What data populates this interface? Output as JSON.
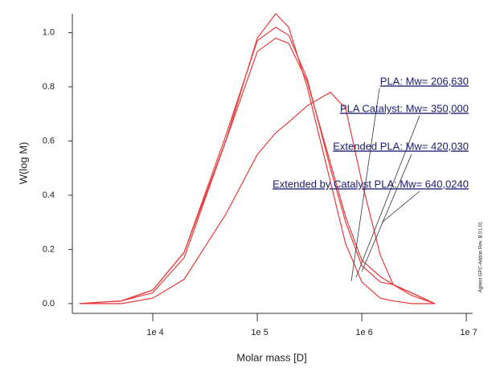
{
  "chart_data": {
    "type": "line",
    "ylabel": "W(log M)",
    "xlabel": "Molar mass [D]",
    "xscale": "log",
    "x": [
      2000,
      5000,
      10000,
      20000,
      50000,
      100000,
      150000,
      200000,
      300000,
      500000,
      700000,
      1000000,
      1500000,
      2000000,
      3000000,
      5000000
    ],
    "series": [
      {
        "color": "#e83a3a",
        "values": [
          0,
          0.01,
          0.04,
          0.17,
          0.6,
          0.98,
          1.07,
          1.02,
          0.8,
          0.45,
          0.22,
          0.08,
          0.02,
          0.01,
          0,
          0
        ]
      },
      {
        "color": "#e83a3a",
        "values": [
          0,
          0.01,
          0.05,
          0.19,
          0.62,
          0.97,
          1.02,
          0.99,
          0.83,
          0.5,
          0.3,
          0.14,
          0.08,
          0.07,
          0.04,
          0
        ]
      },
      {
        "color": "#e83a3a",
        "values": [
          0,
          0.01,
          0.05,
          0.19,
          0.6,
          0.93,
          0.98,
          0.96,
          0.82,
          0.52,
          0.32,
          0.16,
          0.1,
          0.07,
          0.04,
          0
        ]
      },
      {
        "color": "#e83a3a",
        "values": [
          0,
          0,
          0.02,
          0.09,
          0.33,
          0.55,
          0.63,
          0.67,
          0.73,
          0.78,
          0.72,
          0.45,
          0.18,
          0.07,
          0.03,
          0
        ]
      }
    ],
    "xlim": [
      1700,
      11500000
    ],
    "ylim": [
      -0.036,
      1.07
    ],
    "xticks": [
      {
        "value": 10000,
        "label": "1e 4"
      },
      {
        "value": 100000,
        "label": "1e 5"
      },
      {
        "value": 1000000,
        "label": "1e 6"
      },
      {
        "value": 10000000,
        "label": "1e 7"
      }
    ],
    "yticks": [
      {
        "value": 0,
        "label": "0.0"
      },
      {
        "value": 0.2,
        "label": "0.2"
      },
      {
        "value": 0.4,
        "label": "0.4"
      },
      {
        "value": 0.6,
        "label": "0.6"
      },
      {
        "value": 0.8,
        "label": "0.8"
      },
      {
        "value": 1,
        "label": "1.0"
      }
    ],
    "annotations": [
      "PLA: Mw= 206,630",
      "PLA Catalyst: Mw= 350,000",
      "Extended PLA: Mw= 420,030",
      "Extended by Catalyst PLA: Mw= 640,0240"
    ],
    "side_text": "Agilent GPC-Addon Rev. B.01.01"
  }
}
